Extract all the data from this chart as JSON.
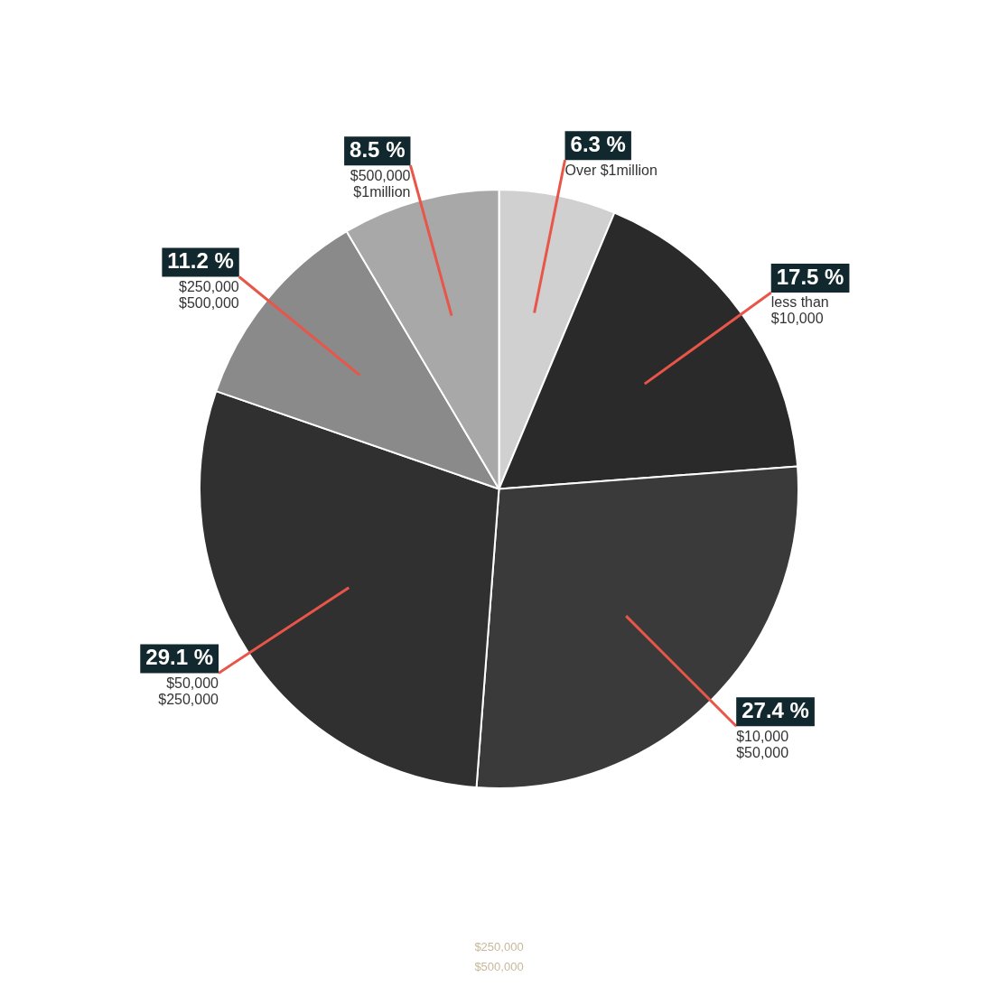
{
  "chart_data": {
    "type": "pie",
    "categories": [
      "Over $1million",
      "less than\n$10,000",
      "$10,000\n$50,000",
      "$50,000\n$250,000",
      "$250,000\n$500,000",
      "$500,000\n$1million"
    ],
    "values": [
      6.3,
      17.5,
      27.4,
      29.1,
      11.2,
      8.5
    ],
    "value_labels": [
      "6.3 %",
      "17.5 %",
      "27.4 %",
      "29.1 %",
      "11.2 %",
      "8.5 %"
    ],
    "colors": [
      "#d0d0d0",
      "#2a2a2a",
      "#3a3a3a",
      "#303030",
      "#8a8a8a",
      "#a8a8a8"
    ],
    "annotations": [
      "$250,000",
      "$500,000"
    ],
    "legend": false
  }
}
